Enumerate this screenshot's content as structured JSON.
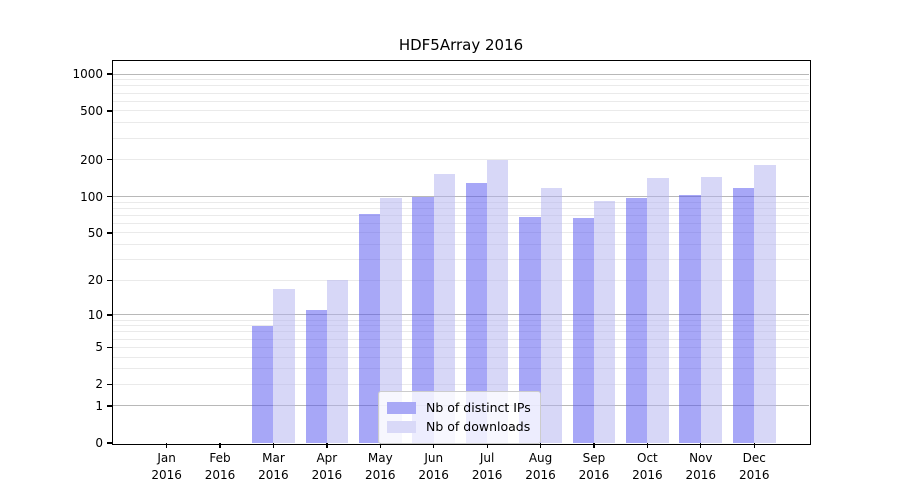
{
  "title": "HDF5Array 2016",
  "legend": {
    "items": [
      {
        "key": "distinct-ips",
        "label": "Nb of distinct IPs",
        "swatch_color": "#a9a9f6"
      },
      {
        "key": "downloads",
        "label": "Nb of downloads",
        "swatch_color": "#d9d9f8"
      }
    ]
  },
  "chart_data": {
    "type": "bar",
    "title": "HDF5Array 2016",
    "year": "2016",
    "categories": [
      "Jan",
      "Feb",
      "Mar",
      "Apr",
      "May",
      "Jun",
      "Jul",
      "Aug",
      "Sep",
      "Oct",
      "Nov",
      "Dec"
    ],
    "series": [
      {
        "name": "Nb of distinct IPs",
        "key": "distinct-ips",
        "values": [
          0,
          0,
          8,
          11,
          72,
          100,
          128,
          68,
          67,
          98,
          102,
          117
        ],
        "fill": "rgba(80,80,240,0.5)"
      },
      {
        "name": "Nb of downloads",
        "key": "downloads",
        "values": [
          0,
          0,
          17,
          20,
          97,
          152,
          200,
          117,
          92,
          141,
          145,
          180
        ],
        "fill": "rgba(176,176,240,0.5)"
      }
    ],
    "yticks": [
      0,
      1,
      2,
      5,
      10,
      20,
      50,
      100,
      200,
      500,
      1000
    ],
    "scale": "log1p",
    "ylim": [
      0,
      1200
    ],
    "grid": "horizontal-log",
    "legend_position": "inside-bottom-center",
    "colors": {
      "bar_dark_on_white": "#a9a9f6",
      "bar_light_on_white": "#d9d9f8",
      "grid_major": "#b8b8b8",
      "grid_minor": "#eaeaea"
    }
  }
}
